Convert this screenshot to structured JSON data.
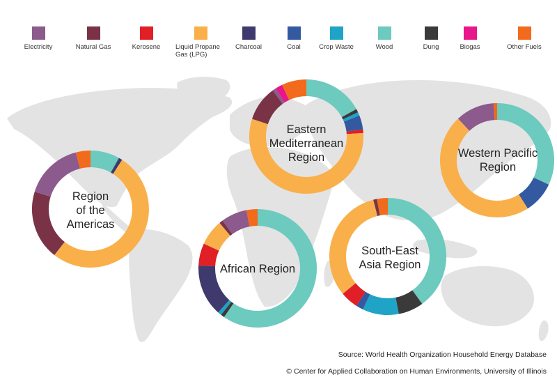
{
  "legend": [
    {
      "key": "electricity",
      "label": "Electricity",
      "color": "#8C5A8C"
    },
    {
      "key": "natural_gas",
      "label": "Natural Gas",
      "color": "#7A3346"
    },
    {
      "key": "kerosene",
      "label": "Kerosene",
      "color": "#E01F26"
    },
    {
      "key": "lpg",
      "label": "Liquid Propane Gas (LPG)",
      "color": "#F9B04A"
    },
    {
      "key": "charcoal",
      "label": "Charcoal",
      "color": "#3E3A6E"
    },
    {
      "key": "coal",
      "label": "Coal",
      "color": "#3359A0"
    },
    {
      "key": "crop_waste",
      "label": "Crop Waste",
      "color": "#1FA3C6"
    },
    {
      "key": "wood",
      "label": "Wood",
      "color": "#6CCABE"
    },
    {
      "key": "dung",
      "label": "Dung",
      "color": "#3A3A3A"
    },
    {
      "key": "biogas",
      "label": "Biogas",
      "color": "#E8158B"
    },
    {
      "key": "other_fuels",
      "label": "Other Fuels",
      "color": "#F26A1B"
    }
  ],
  "chart_data": [
    {
      "type": "pie",
      "region": "Region of the Americas",
      "label_lines": [
        "Region",
        "of the",
        "Americas"
      ],
      "categories": [
        "Wood",
        "Charcoal",
        "LPG",
        "Natural Gas",
        "Electricity",
        "Other Fuels"
      ],
      "values": [
        8,
        1,
        51,
        19,
        16,
        4
      ]
    },
    {
      "type": "pie",
      "region": "Eastern Mediterranean Region",
      "label_lines": [
        "Eastern",
        "Mediterranean",
        "Region"
      ],
      "categories": [
        "Wood",
        "Dung",
        "Crop Waste",
        "Coal",
        "Kerosene",
        "LPG",
        "Natural Gas",
        "Electricity",
        "Biogas",
        "Other Fuels"
      ],
      "values": [
        17,
        1,
        1,
        4,
        1,
        56,
        10,
        1,
        2,
        7
      ]
    },
    {
      "type": "pie",
      "region": "Western Pacific Region",
      "label_lines": [
        "Western Pacific",
        "Region"
      ],
      "categories": [
        "Wood",
        "Coal",
        "LPG",
        "Electricity",
        "Other Fuels"
      ],
      "values": [
        32,
        9,
        47,
        11,
        1
      ]
    },
    {
      "type": "pie",
      "region": "African Region",
      "label_lines": [
        "African Region"
      ],
      "categories": [
        "Wood",
        "Dung",
        "Crop Waste",
        "Charcoal",
        "Kerosene",
        "LPG",
        "Natural Gas",
        "Electricity",
        "Other Fuels"
      ],
      "values": [
        59,
        1,
        1,
        14,
        6,
        7,
        1,
        7,
        3
      ]
    },
    {
      "type": "pie",
      "region": "South-East Asia Region",
      "label_lines": [
        "South-East",
        "Asia Region"
      ],
      "categories": [
        "Wood",
        "Dung",
        "Crop Waste",
        "Coal",
        "Kerosene",
        "LPG",
        "Natural Gas",
        "Other Fuels"
      ],
      "values": [
        40,
        7,
        10,
        2,
        5,
        32,
        1,
        3
      ]
    }
  ],
  "footer": {
    "source": "Source: World Health Organization Household Energy Database",
    "credit": "© Center for Applied Collaboration on Human Environments, University of Illinois"
  }
}
